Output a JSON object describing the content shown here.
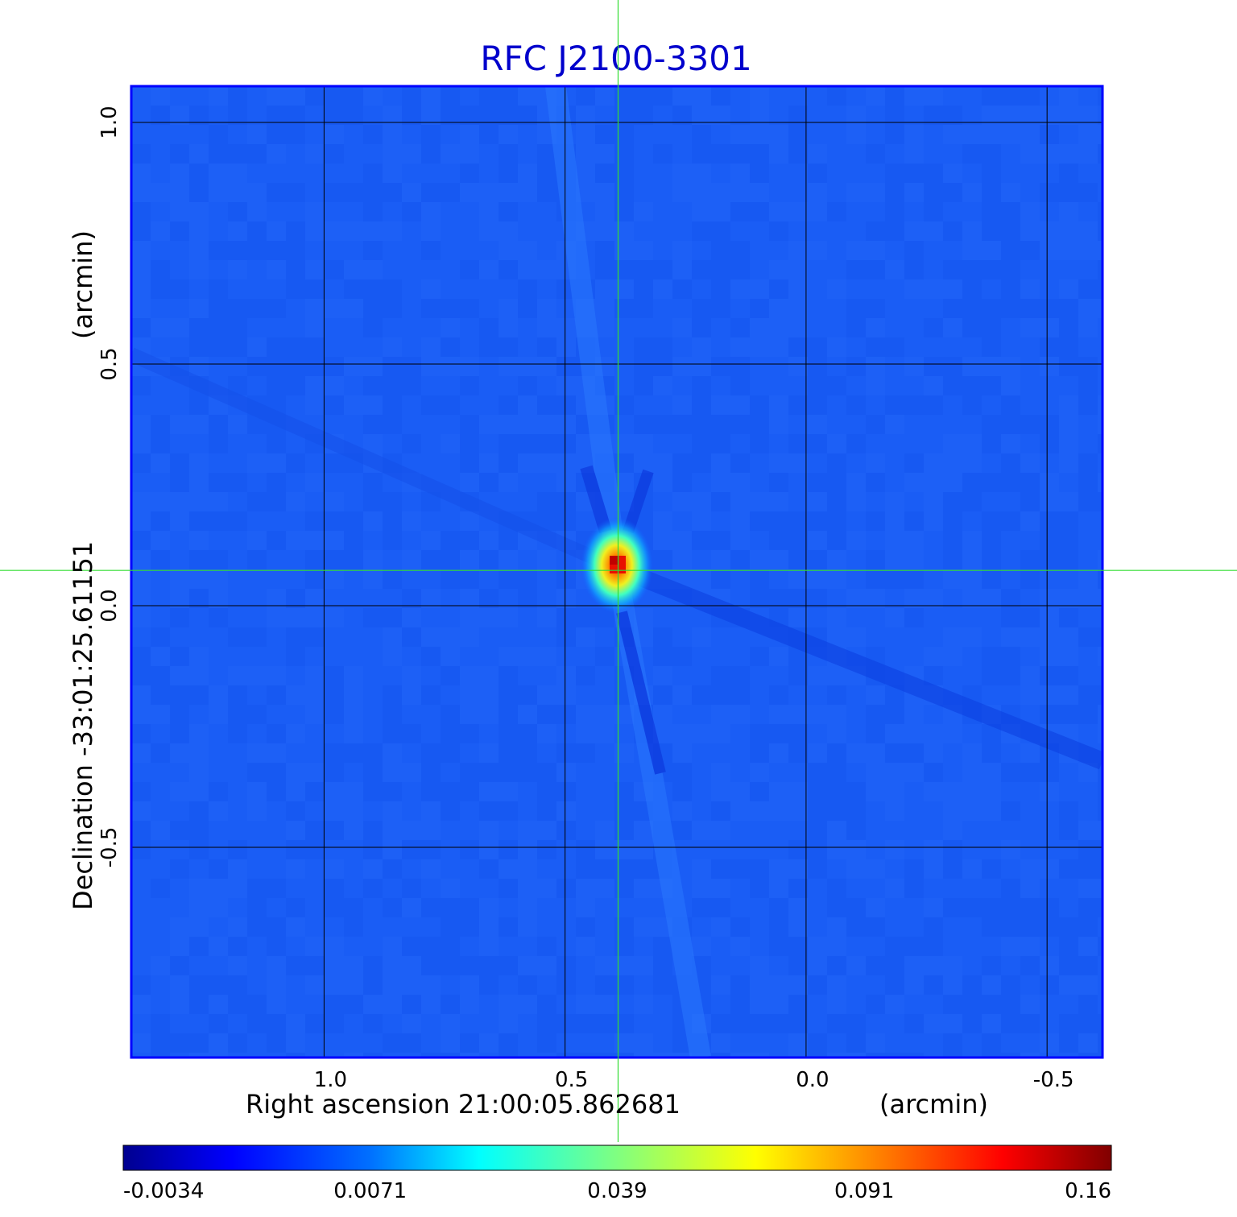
{
  "chart_data": {
    "type": "heatmap",
    "title": "RFC J2100-3301",
    "xlabel": "Right ascension  21:00:05.862681",
    "xunit": "(arcmin)",
    "ylabel": "Declination  -33:01:25.61151",
    "yunit": "(arcmin)",
    "x_range": [
      1.4,
      -0.615
    ],
    "y_range": [
      -0.935,
      1.075
    ],
    "x_ticks": [
      {
        "value": 1.0,
        "label": "1.0"
      },
      {
        "value": 0.5,
        "label": "0.5"
      },
      {
        "value": 0.0,
        "label": "0.0"
      },
      {
        "value": -0.5,
        "label": "-0.5"
      }
    ],
    "y_ticks": [
      {
        "value": 1.0,
        "label": "1.0"
      },
      {
        "value": 0.5,
        "label": "0.5"
      },
      {
        "value": 0.0,
        "label": "0.0"
      },
      {
        "value": -0.5,
        "label": "-0.5"
      }
    ],
    "grid": true,
    "crosshair": {
      "x": 0.39,
      "y": 0.073
    },
    "source_peak": {
      "x": 0.39,
      "y": 0.08,
      "value": 0.16
    },
    "background_level": 0.0035,
    "colorbar": {
      "ticks": [
        {
          "value": -0.0034,
          "label": "-0.0034"
        },
        {
          "value": 0.0071,
          "label": "0.0071"
        },
        {
          "value": 0.039,
          "label": "0.039"
        },
        {
          "value": 0.091,
          "label": "0.091"
        },
        {
          "value": 0.16,
          "label": "0.16"
        }
      ],
      "colormap": [
        "#00008f",
        "#0000ff",
        "#0080ff",
        "#00ffff",
        "#80ff80",
        "#ffff00",
        "#ff8000",
        "#ff0000",
        "#800000"
      ]
    }
  },
  "colors": {
    "title": "#0000cc",
    "frame": "#0000ff",
    "grid": "#000000",
    "crosshair": "#33dd33",
    "text": "#000000"
  }
}
